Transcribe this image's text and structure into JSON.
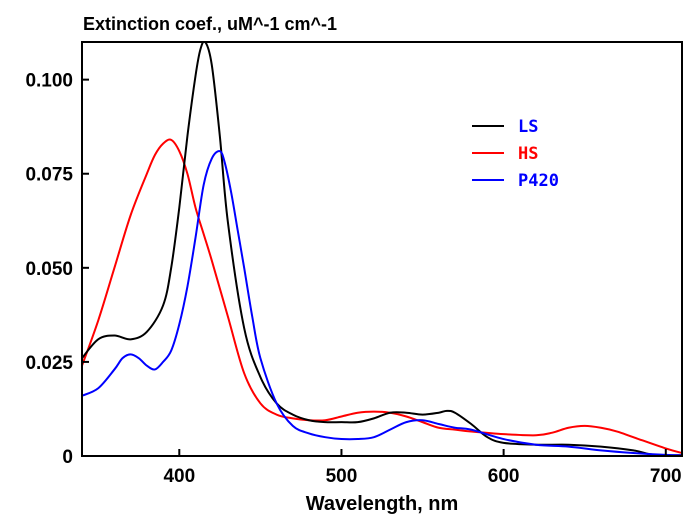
{
  "chart_data": {
    "type": "line",
    "title": "Extinction coef., uM^-1 cm^-1",
    "xlabel": "Wavelength, nm",
    "ylabel": "",
    "xlim": [
      340,
      710
    ],
    "ylim": [
      0,
      0.11
    ],
    "xticks": [
      400,
      500,
      600,
      700
    ],
    "xtick_labels": [
      "400",
      "500",
      "600",
      "700"
    ],
    "yticks": [
      0,
      0.025,
      0.05,
      0.075,
      0.1
    ],
    "ytick_labels": [
      "0",
      "0.025",
      "0.050",
      "0.075",
      "0.100"
    ],
    "grid": false,
    "legend_position": "top-right",
    "series": [
      {
        "name": "LS",
        "color": "#000000",
        "x": [
          340,
          350,
          360,
          370,
          380,
          390,
          395,
          400,
          405,
          410,
          413,
          416,
          420,
          425,
          430,
          440,
          450,
          460,
          470,
          480,
          490,
          500,
          510,
          520,
          530,
          540,
          550,
          560,
          565,
          570,
          580,
          590,
          600,
          620,
          640,
          660,
          680,
          690,
          700,
          710
        ],
        "y": [
          0.026,
          0.031,
          0.032,
          0.031,
          0.033,
          0.04,
          0.05,
          0.066,
          0.085,
          0.101,
          0.108,
          0.11,
          0.104,
          0.085,
          0.062,
          0.034,
          0.021,
          0.014,
          0.011,
          0.0095,
          0.009,
          0.009,
          0.009,
          0.01,
          0.0115,
          0.0115,
          0.011,
          0.0115,
          0.012,
          0.0115,
          0.0085,
          0.005,
          0.0035,
          0.003,
          0.003,
          0.0025,
          0.0015,
          0.0005,
          0.0002,
          0.0002
        ]
      },
      {
        "name": "HS",
        "color": "#ff0000",
        "x": [
          340,
          350,
          360,
          370,
          380,
          385,
          390,
          395,
          400,
          405,
          410,
          415,
          420,
          430,
          440,
          450,
          460,
          470,
          480,
          490,
          500,
          510,
          520,
          530,
          540,
          550,
          560,
          570,
          580,
          600,
          620,
          630,
          640,
          650,
          660,
          670,
          680,
          700,
          710
        ],
        "y": [
          0.024,
          0.036,
          0.05,
          0.064,
          0.075,
          0.08,
          0.083,
          0.084,
          0.081,
          0.075,
          0.066,
          0.059,
          0.052,
          0.037,
          0.022,
          0.014,
          0.011,
          0.01,
          0.0095,
          0.0095,
          0.0105,
          0.0115,
          0.0118,
          0.0115,
          0.0105,
          0.009,
          0.0075,
          0.007,
          0.0065,
          0.0058,
          0.0055,
          0.0062,
          0.0075,
          0.008,
          0.0075,
          0.0065,
          0.005,
          0.002,
          0.0008
        ]
      },
      {
        "name": "P420",
        "color": "#0000ff",
        "x": [
          340,
          350,
          360,
          365,
          370,
          375,
          380,
          385,
          390,
          395,
          400,
          405,
          410,
          415,
          420,
          425,
          428,
          432,
          436,
          440,
          445,
          450,
          460,
          470,
          480,
          490,
          500,
          510,
          520,
          530,
          540,
          550,
          560,
          570,
          580,
          600,
          620,
          640,
          660,
          680,
          700,
          710
        ],
        "y": [
          0.016,
          0.018,
          0.023,
          0.026,
          0.027,
          0.026,
          0.024,
          0.023,
          0.025,
          0.028,
          0.035,
          0.045,
          0.058,
          0.072,
          0.079,
          0.081,
          0.078,
          0.07,
          0.06,
          0.05,
          0.037,
          0.026,
          0.014,
          0.008,
          0.006,
          0.005,
          0.0045,
          0.0045,
          0.005,
          0.007,
          0.009,
          0.0095,
          0.0085,
          0.0075,
          0.007,
          0.0045,
          0.003,
          0.0025,
          0.0015,
          0.0008,
          0.0003,
          0.0002
        ]
      }
    ]
  }
}
